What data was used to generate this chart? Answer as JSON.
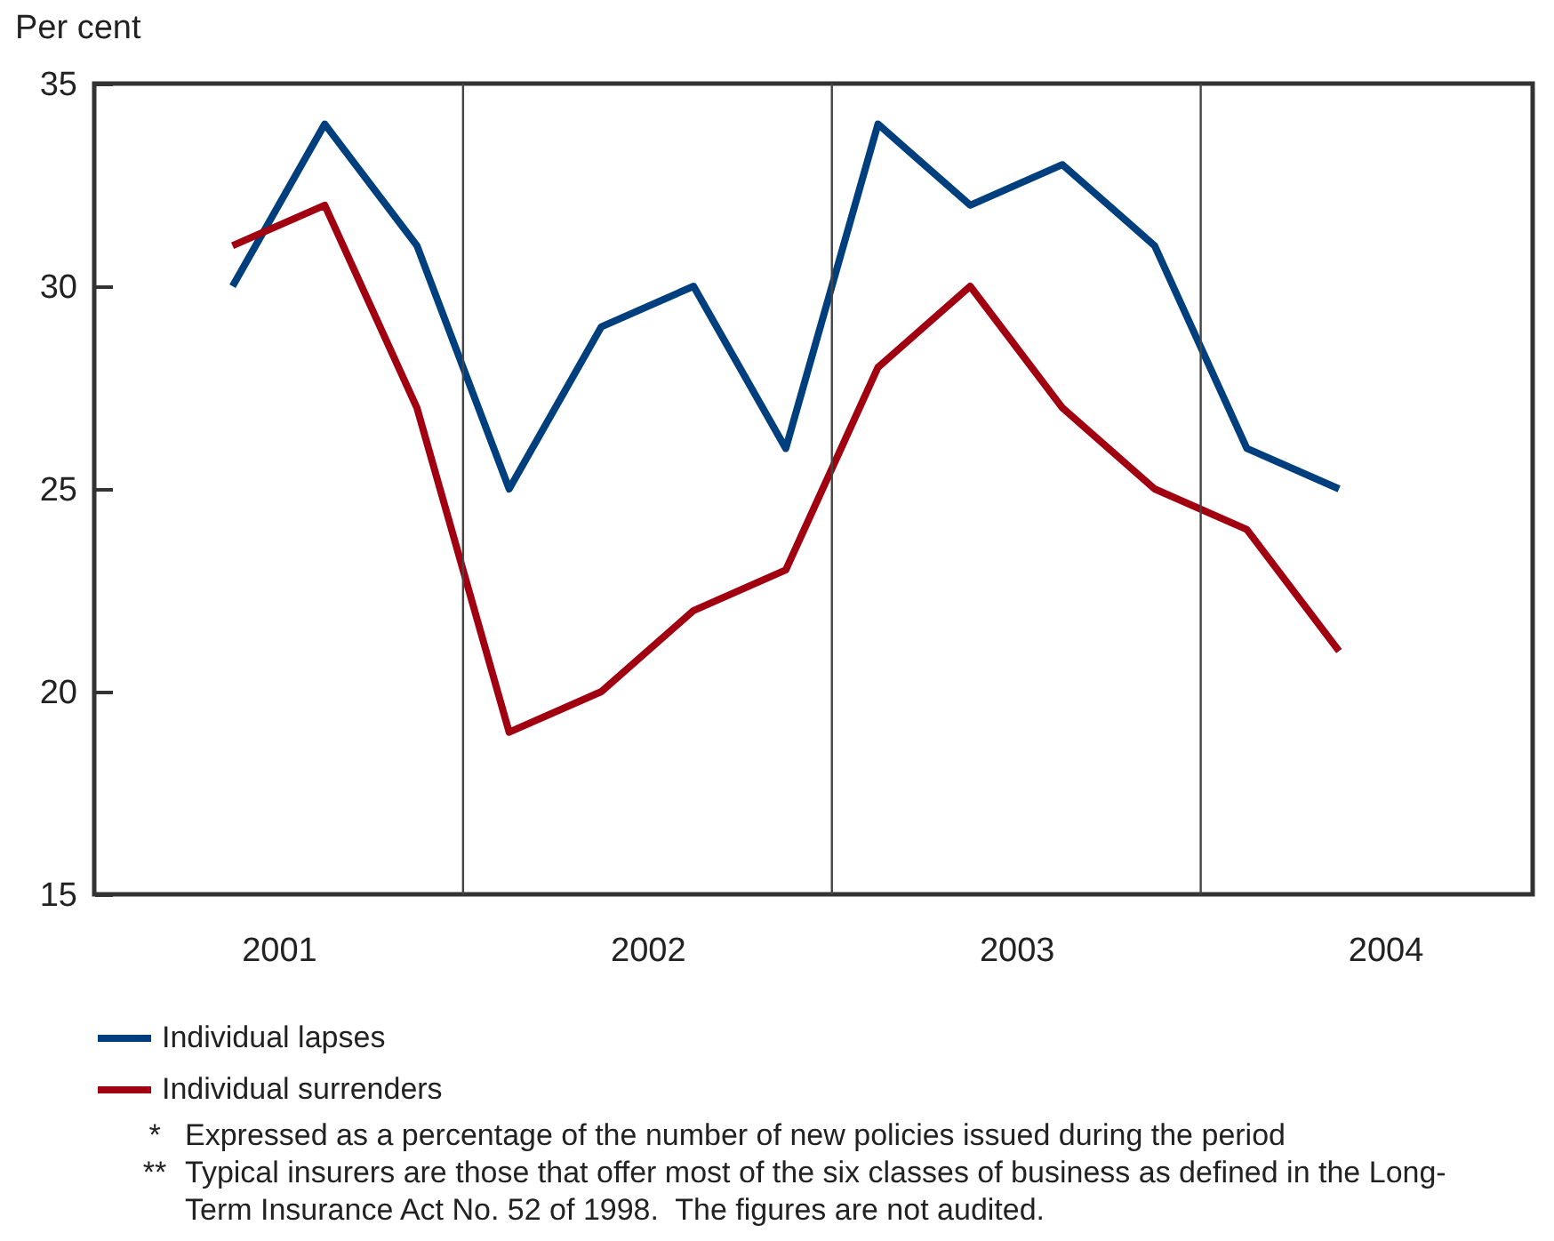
{
  "chart_data": {
    "type": "line",
    "ylabel": "Per cent",
    "x": [
      2001.375,
      2001.625,
      2001.875,
      2002.125,
      2002.375,
      2002.625,
      2002.875,
      2003.125,
      2003.375,
      2003.625,
      2003.875,
      2004.125,
      2004.375
    ],
    "xlim": [
      2001,
      2004.9
    ],
    "xticks": [
      {
        "value": 2001.5,
        "label": "2001"
      },
      {
        "value": 2002.5,
        "label": "2002"
      },
      {
        "value": 2003.5,
        "label": "2003"
      },
      {
        "value": 2004.5,
        "label": "2004"
      }
    ],
    "ylim": [
      15,
      35
    ],
    "yticks": [
      15,
      20,
      25,
      30,
      35
    ],
    "series": [
      {
        "name": "Individual lapses",
        "color": "#003f7d",
        "values": [
          30,
          34,
          31,
          25,
          29,
          30,
          26,
          34,
          32,
          33,
          31,
          26,
          25
        ]
      },
      {
        "name": "Individual surrenders",
        "color": "#a0000f",
        "values": [
          31,
          32,
          27,
          19,
          20,
          22,
          23,
          28,
          30,
          27,
          25,
          24,
          21
        ]
      }
    ],
    "ref_lines": [
      {
        "axis": "x",
        "value": 2002
      },
      {
        "axis": "x",
        "value": 2003
      },
      {
        "axis": "x",
        "value": 2004
      }
    ],
    "grid": false,
    "legend": "bottom left",
    "marker": "none",
    "line_style": "solid",
    "annotations": [
      "* Expressed as a percentage of the number of new policies issued during the period",
      "** Typical insurers are those that offer most of the six classes of business as defined in the Long-Term Insurance Act No. 52 of 1998.  The figures are not audited."
    ]
  }
}
